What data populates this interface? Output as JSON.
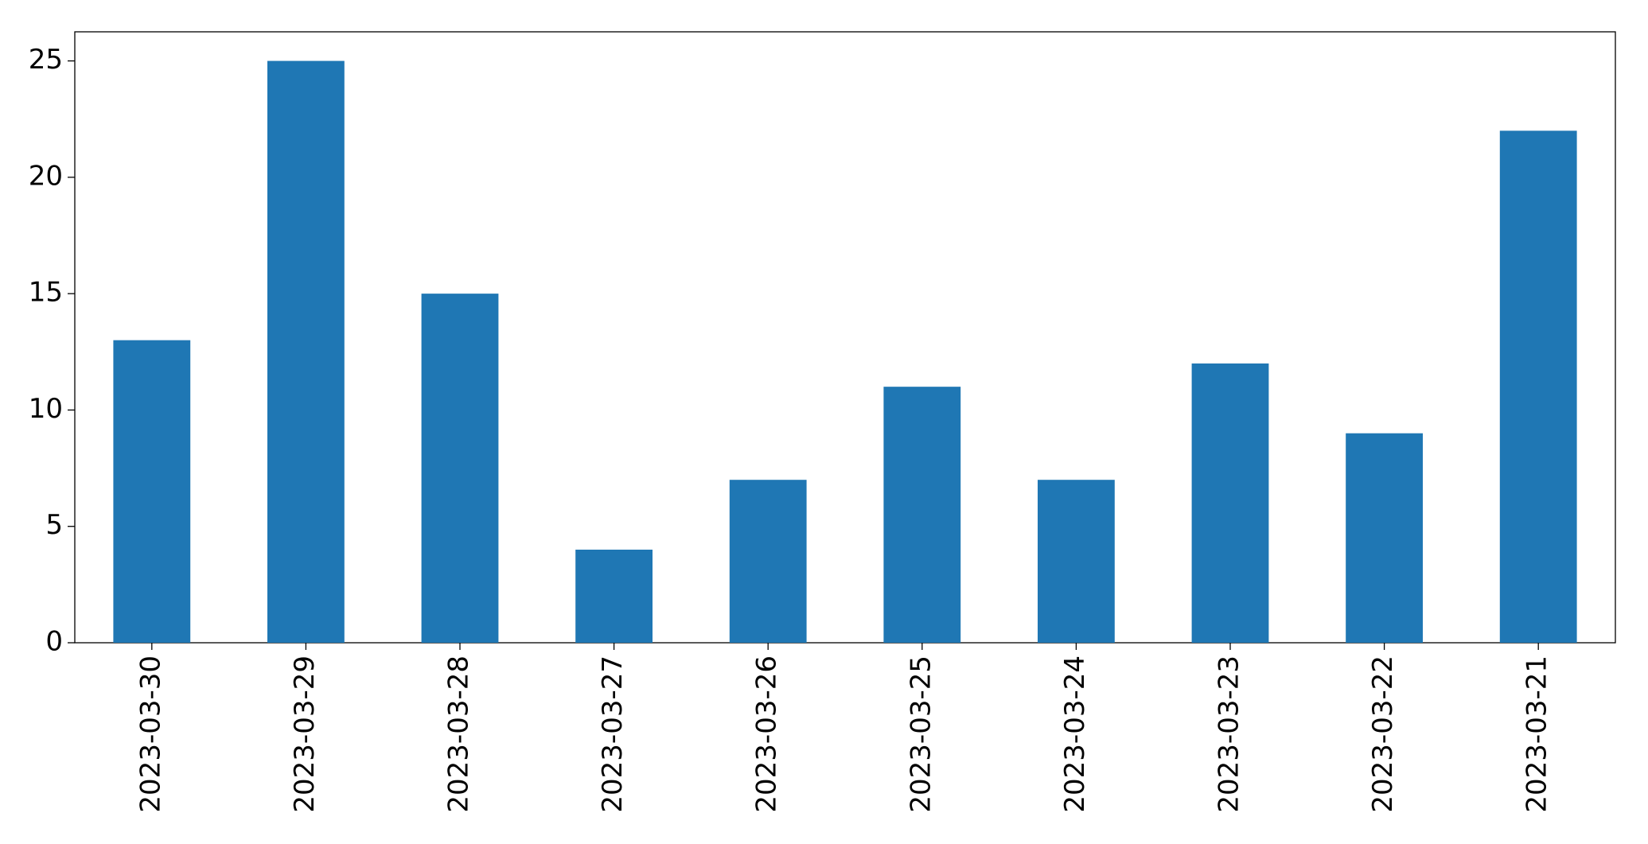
{
  "chart_data": {
    "type": "bar",
    "categories": [
      "2023-03-30",
      "2023-03-29",
      "2023-03-28",
      "2023-03-27",
      "2023-03-26",
      "2023-03-25",
      "2023-03-24",
      "2023-03-23",
      "2023-03-22",
      "2023-03-21"
    ],
    "values": [
      13,
      25,
      15,
      4,
      7,
      11,
      7,
      12,
      9,
      22
    ],
    "color": "#1f77b4",
    "ylim": [
      0,
      26.25
    ],
    "yticks": [
      0,
      5,
      10,
      15,
      20,
      25
    ],
    "grid": false
  }
}
